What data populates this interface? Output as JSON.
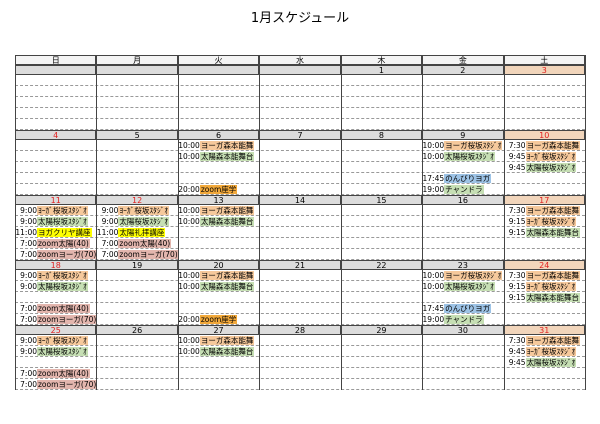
{
  "title": "1月スケジュール",
  "weekdays": [
    "日",
    "月",
    "火",
    "水",
    "木",
    "金",
    "土"
  ],
  "weeks": [
    [
      null,
      null,
      null,
      null,
      {
        "date": "1",
        "red": false
      },
      {
        "date": "2",
        "red": false
      },
      {
        "date": "3",
        "red": true
      }
    ],
    [
      {
        "date": "4",
        "red": true
      },
      {
        "date": "5",
        "red": false
      },
      {
        "date": "6",
        "red": false,
        "slots": [
          {
            "time": "10:00",
            "text": "ヨーガ森本能舞",
            "color": "#f6c99c"
          },
          {
            "time": "10:00",
            "text": "太陽森本能舞台",
            "color": "#c6dfb4"
          },
          null,
          null,
          {
            "time": "20:00",
            "text": "zoom座学",
            "color": "#f2a93b"
          }
        ]
      },
      {
        "date": "7",
        "red": false
      },
      {
        "date": "8",
        "red": false
      },
      {
        "date": "9",
        "red": false,
        "slots": [
          {
            "time": "10:00",
            "text": "ヨーガ桜坂ｽﾀｼﾞｵ",
            "color": "#f6c99c"
          },
          {
            "time": "10:00",
            "text": "太陽桜坂ｽﾀｼﾞｵ",
            "color": "#c6dfb4"
          },
          null,
          {
            "time": "17:45",
            "text": "のんびりヨガ",
            "color": "#9dc3e6"
          },
          {
            "time": "19:00",
            "text": "チャンドラ",
            "color": "#c6dfb4"
          }
        ]
      },
      {
        "date": "10",
        "red": true,
        "slots": [
          {
            "time": "7:30",
            "text": "ヨーガ森本能舞",
            "color": "#f6c99c"
          },
          {
            "time": "9:45",
            "text": "ﾖｰｶﾞ桜坂ｽﾀｼﾞｵ",
            "color": "#f6c99c"
          },
          {
            "time": "9:45",
            "text": "太陽桜坂ｽﾀｼﾞｵ",
            "color": "#c6dfb4"
          },
          null,
          null
        ]
      }
    ],
    [
      {
        "date": "11",
        "red": true,
        "slots": [
          {
            "time": "9:00",
            "text": "ﾖｰｶﾞ桜坂ｽﾀｼﾞｵ",
            "color": "#f6c99c"
          },
          {
            "time": "9:00",
            "text": "太陽桜坂ｽﾀｼﾞｵ",
            "color": "#c6dfb4"
          },
          {
            "time": "11:00",
            "text": "ヨガクリヤ講座",
            "color": "#ffff00"
          },
          {
            "time": "7:00",
            "text": "zoom太陽(40)",
            "color": "#e3b6ae"
          },
          {
            "time": "7:00",
            "text": "zoomヨーガ(70)",
            "color": "#e3b6ae"
          }
        ]
      },
      {
        "date": "12",
        "red": true,
        "slots": [
          {
            "time": "9:00",
            "text": "ﾖｰｶﾞ桜坂ｽﾀｼﾞｵ",
            "color": "#f6c99c"
          },
          {
            "time": "9:00",
            "text": "太陽桜坂ｽﾀｼﾞｵ",
            "color": "#c6dfb4"
          },
          {
            "time": "11:00",
            "text": "太陽礼拝講座",
            "color": "#ffff00"
          },
          {
            "time": "7:00",
            "text": "zoom太陽(40)",
            "color": "#e3b6ae"
          },
          {
            "time": "7:00",
            "text": "zoomヨーガ(70)",
            "color": "#e3b6ae"
          }
        ]
      },
      {
        "date": "13",
        "red": false,
        "slots": [
          {
            "time": "10:00",
            "text": "ヨーガ森本能舞",
            "color": "#f6c99c"
          },
          {
            "time": "10:00",
            "text": "太陽森本能舞台",
            "color": "#c6dfb4"
          },
          null,
          null,
          null
        ]
      },
      {
        "date": "14",
        "red": false
      },
      {
        "date": "15",
        "red": false
      },
      {
        "date": "16",
        "red": false
      },
      {
        "date": "17",
        "red": true,
        "slots": [
          {
            "time": "7:30",
            "text": "ヨーガ森本能舞",
            "color": "#f6c99c"
          },
          {
            "time": "9:15",
            "text": "ﾖｰｶﾞ桜坂ｽﾀｼﾞｵ",
            "color": "#f6c99c"
          },
          {
            "time": "9:15",
            "text": "太陽森本能舞台",
            "color": "#c6dfb4"
          },
          null,
          null
        ]
      }
    ],
    [
      {
        "date": "18",
        "red": true,
        "slots": [
          {
            "time": "9:00",
            "text": "ﾖｰｶﾞ桜坂ｽﾀｼﾞｵ",
            "color": "#f6c99c"
          },
          {
            "time": "9:00",
            "text": "太陽桜坂ｽﾀｼﾞｵ",
            "color": "#c6dfb4"
          },
          null,
          {
            "time": "7:00",
            "text": "zoom太陽(40)",
            "color": "#e3b6ae"
          },
          {
            "time": "7:00",
            "text": "zoomヨーガ(70)",
            "color": "#e3b6ae"
          }
        ]
      },
      {
        "date": "19",
        "red": false
      },
      {
        "date": "20",
        "red": false,
        "slots": [
          {
            "time": "10:00",
            "text": "ヨーガ森本能舞",
            "color": "#f6c99c"
          },
          {
            "time": "10:00",
            "text": "太陽森本能舞台",
            "color": "#c6dfb4"
          },
          null,
          null,
          {
            "time": "20:00",
            "text": "zoom座学",
            "color": "#f2a93b"
          }
        ]
      },
      {
        "date": "21",
        "red": false
      },
      {
        "date": "22",
        "red": false
      },
      {
        "date": "23",
        "red": false,
        "slots": [
          {
            "time": "10:00",
            "text": "ヨーガ桜坂ｽﾀｼﾞｵ",
            "color": "#f6c99c"
          },
          {
            "time": "10:00",
            "text": "太陽桜坂ｽﾀｼﾞｵ",
            "color": "#c6dfb4"
          },
          null,
          {
            "time": "17:45",
            "text": "のんびりヨガ",
            "color": "#9dc3e6"
          },
          {
            "time": "19:00",
            "text": "チャンドラ",
            "color": "#c6dfb4"
          }
        ]
      },
      {
        "date": "24",
        "red": true,
        "slots": [
          {
            "time": "7:30",
            "text": "ヨーガ森本能舞",
            "color": "#f6c99c"
          },
          {
            "time": "9:15",
            "text": "ﾖｰｶﾞ桜坂ｽﾀｼﾞｵ",
            "color": "#f6c99c"
          },
          {
            "time": "9:15",
            "text": "太陽森本能舞台",
            "color": "#c6dfb4"
          },
          null,
          null
        ]
      }
    ],
    [
      {
        "date": "25",
        "red": true,
        "slots": [
          {
            "time": "9:00",
            "text": "ﾖｰｶﾞ桜坂ｽﾀｼﾞｵ",
            "color": "#f6c99c"
          },
          {
            "time": "9:00",
            "text": "太陽桜坂ｽﾀｼﾞｵ",
            "color": "#c6dfb4"
          },
          null,
          {
            "time": "7:00",
            "text": "zoom太陽(40)",
            "color": "#e3b6ae"
          },
          {
            "time": "7:00",
            "text": "zoomヨーガ(70)",
            "color": "#e3b6ae"
          }
        ]
      },
      {
        "date": "26",
        "red": false
      },
      {
        "date": "27",
        "red": false,
        "slots": [
          {
            "time": "10:00",
            "text": "ヨーガ森本能舞",
            "color": "#f6c99c"
          },
          {
            "time": "10:00",
            "text": "太陽森本能舞台",
            "color": "#c6dfb4"
          },
          null,
          null,
          null
        ]
      },
      {
        "date": "28",
        "red": false
      },
      {
        "date": "29",
        "red": false
      },
      {
        "date": "30",
        "red": false
      },
      {
        "date": "31",
        "red": true,
        "slots": [
          {
            "time": "7:30",
            "text": "ヨーガ森本能舞",
            "color": "#f6c99c"
          },
          {
            "time": "9:45",
            "text": "ﾖｰｶﾞ桜坂ｽﾀｼﾞｵ",
            "color": "#f6c99c"
          },
          {
            "time": "9:45",
            "text": "太陽桜坂ｽﾀｼﾞｵ",
            "color": "#c6dfb4"
          },
          null,
          null
        ]
      }
    ]
  ]
}
